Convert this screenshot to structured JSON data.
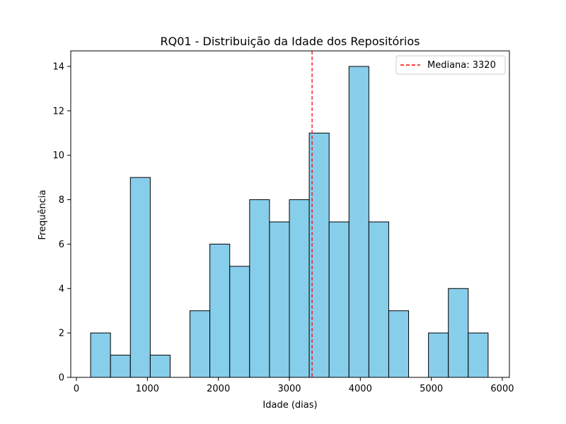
{
  "chart_data": {
    "type": "bar",
    "title": "RQ01 - Distribuição da Idade dos Repositórios",
    "xlabel": "Idade (dias)",
    "ylabel": "Frequência",
    "xlim": [
      -80,
      6100
    ],
    "ylim": [
      0,
      14.7
    ],
    "x_ticks": [
      0,
      1000,
      2000,
      3000,
      4000,
      5000,
      6000
    ],
    "y_ticks": [
      0,
      2,
      4,
      6,
      8,
      10,
      12,
      14
    ],
    "bin_edges": [
      200,
      480,
      760,
      1040,
      1320,
      1600,
      1880,
      2160,
      2440,
      2720,
      3000,
      3280,
      3560,
      3840,
      4120,
      4400,
      4680,
      4960,
      5240,
      5520,
      5800
    ],
    "counts": [
      2,
      1,
      9,
      1,
      0,
      3,
      6,
      5,
      8,
      7,
      8,
      11,
      7,
      14,
      7,
      3,
      0,
      2,
      4,
      2
    ],
    "median": 3320,
    "median_label": "Mediana: 3320",
    "legend_position": "top-right",
    "grid": false,
    "bar_color": "#87ceeb",
    "bar_edge_color": "#000000",
    "median_color": "#ff0000"
  }
}
